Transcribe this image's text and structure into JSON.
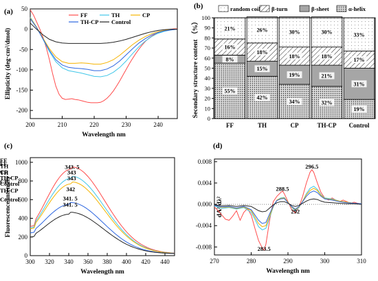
{
  "panels": {
    "a": {
      "label": "(a)"
    },
    "b": {
      "label": "(b)"
    },
    "c": {
      "label": "(c)"
    },
    "d": {
      "label": "(d)"
    }
  },
  "colors": {
    "FF": "#ff4b4b",
    "TH": "#3fc6e8",
    "CP": "#f5b300",
    "TH-CP": "#2a64e0",
    "Control": "#222222"
  },
  "chart_data": [
    {
      "id": "a",
      "type": "line",
      "xlabel": "Wavelength  nm",
      "ylabel": "Ellipticity (deg·cm²/dmol)",
      "xlim": [
        200,
        246
      ],
      "ylim": [
        -220,
        50
      ],
      "xticks": [
        200,
        210,
        220,
        230,
        240
      ],
      "yticks": [
        50,
        0,
        -50,
        -100,
        -150,
        -200
      ],
      "legend_position": "top",
      "series": [
        {
          "name": "FF",
          "color": "#ff4b4b",
          "x": [
            200,
            201,
            202,
            203,
            204,
            205,
            206,
            207,
            208,
            209,
            210,
            211,
            212,
            213,
            214,
            215,
            216,
            217,
            218,
            219,
            220,
            221,
            222,
            223,
            224,
            225,
            226,
            227,
            228,
            229,
            230,
            231,
            232,
            233,
            234,
            235,
            236,
            237,
            238,
            239,
            240,
            241,
            242,
            243,
            244,
            245,
            246
          ],
          "y": [
            48,
            35,
            18,
            0,
            -20,
            -45,
            -75,
            -110,
            -140,
            -160,
            -170,
            -173,
            -172,
            -171,
            -173,
            -174,
            -176,
            -178,
            -180,
            -181,
            -181,
            -181,
            -180,
            -176,
            -170,
            -162,
            -152,
            -140,
            -127,
            -113,
            -99,
            -85,
            -72,
            -60,
            -49,
            -39,
            -30,
            -23,
            -17,
            -12,
            -8,
            -5,
            -3,
            -1,
            0,
            1,
            1
          ]
        },
        {
          "name": "TH",
          "color": "#3fc6e8",
          "x": [
            200,
            202,
            204,
            206,
            208,
            210,
            212,
            214,
            216,
            218,
            220,
            222,
            224,
            226,
            228,
            230,
            232,
            234,
            236,
            238,
            240,
            242,
            244,
            246
          ],
          "y": [
            30,
            5,
            -25,
            -55,
            -80,
            -95,
            -102,
            -105,
            -108,
            -112,
            -116,
            -117,
            -114,
            -106,
            -94,
            -78,
            -60,
            -43,
            -29,
            -18,
            -10,
            -5,
            -2,
            0
          ]
        },
        {
          "name": "CP",
          "color": "#f5b300",
          "x": [
            200,
            202,
            204,
            206,
            208,
            210,
            212,
            214,
            216,
            218,
            220,
            222,
            224,
            226,
            228,
            230,
            232,
            234,
            236,
            238,
            240,
            242,
            244,
            246
          ],
          "y": [
            28,
            5,
            -22,
            -48,
            -68,
            -80,
            -84,
            -84,
            -83,
            -84,
            -86,
            -86,
            -82,
            -75,
            -64,
            -51,
            -38,
            -27,
            -18,
            -11,
            -6,
            -3,
            -1,
            0
          ]
        },
        {
          "name": "TH-CP",
          "color": "#2a64e0",
          "x": [
            200,
            202,
            204,
            206,
            208,
            210,
            212,
            214,
            216,
            218,
            220,
            222,
            224,
            226,
            228,
            230,
            232,
            234,
            236,
            238,
            240,
            242,
            244,
            246
          ],
          "y": [
            26,
            4,
            -24,
            -52,
            -75,
            -88,
            -94,
            -96,
            -97,
            -99,
            -102,
            -102,
            -98,
            -90,
            -78,
            -63,
            -48,
            -34,
            -23,
            -14,
            -8,
            -4,
            -2,
            0
          ]
        },
        {
          "name": "Control",
          "color": "#222222",
          "x": [
            200,
            202,
            204,
            206,
            208,
            210,
            212,
            214,
            216,
            218,
            220,
            222,
            224,
            226,
            228,
            230,
            232,
            234,
            236,
            238,
            240,
            242,
            244,
            246
          ],
          "y": [
            15,
            0,
            -14,
            -25,
            -31,
            -34,
            -35,
            -35,
            -35,
            -35,
            -35,
            -35,
            -34,
            -32,
            -29,
            -25,
            -20,
            -15,
            -10,
            -6,
            -3,
            -1,
            0,
            0
          ]
        }
      ]
    },
    {
      "id": "b",
      "type": "bar",
      "stacked": true,
      "ylabel": "Secondary structure content （%）",
      "ylim": [
        0,
        100
      ],
      "yticks": [
        0,
        10,
        20,
        30,
        40,
        50,
        60,
        70,
        80,
        90,
        100
      ],
      "categories": [
        "FF",
        "TH",
        "CP",
        "TH-CP",
        "Control"
      ],
      "legend_position": "top",
      "series": [
        {
          "name": "α-helix",
          "fill": "dots-dark",
          "values": [
            55,
            42,
            34,
            32,
            19
          ],
          "labels": [
            "55%",
            "42%",
            "34%",
            "32%",
            "19%"
          ]
        },
        {
          "name": "β-sheet",
          "fill": "grey",
          "values": [
            8,
            15,
            19,
            21,
            31
          ],
          "labels": [
            "8%",
            "15%",
            "19%",
            "21%",
            "31%"
          ]
        },
        {
          "name": "β-turn",
          "fill": "hatch",
          "values": [
            16,
            18,
            18,
            18,
            17
          ],
          "labels": [
            "16%",
            "18%",
            "18%",
            "18%",
            "17%"
          ]
        },
        {
          "name": "random coil",
          "fill": "dots-light",
          "values": [
            21,
            26,
            30,
            30,
            33
          ],
          "labels": [
            "21%",
            "26%",
            "30%",
            "30%",
            "33%"
          ]
        }
      ]
    },
    {
      "id": "c",
      "type": "line",
      "xlabel": "Wavelength  nm",
      "ylabel": "Fluorescence intensity",
      "xlim": [
        300,
        450
      ],
      "ylim": [
        0,
        1050
      ],
      "xticks": [
        300,
        320,
        340,
        360,
        380,
        400,
        420,
        440
      ],
      "yticks": [
        0,
        200,
        400,
        600,
        800,
        1000
      ],
      "legend_position": "right",
      "annotations": [
        {
          "text": "343. 5",
          "x": 343.5,
          "y": 930
        },
        {
          "text": "343",
          "x": 343,
          "y": 870
        },
        {
          "text": "343",
          "x": 343,
          "y": 808
        },
        {
          "text": "342",
          "x": 342,
          "y": 690
        },
        {
          "text": "341. 5",
          "x": 341.5,
          "y": 592
        },
        {
          "text": "341. 5",
          "x": 341.5,
          "y": 525
        }
      ],
      "series": [
        {
          "name": "FF",
          "color": "#ff4b4b",
          "peak": 930,
          "center": 343.5,
          "start": 325
        },
        {
          "name": "TH",
          "color": "#3fc6e8",
          "peak": 830,
          "center": 343,
          "start": 310
        },
        {
          "name": "CP",
          "color": "#f5b300",
          "peak": 770,
          "center": 343,
          "start": 300
        },
        {
          "name": "TH-CP",
          "color": "#2a64e0",
          "peak": 550,
          "center": 341.5,
          "start": 255
        },
        {
          "name": "Control",
          "color": "#222222",
          "peak": 445,
          "center": 341.5,
          "start": 210
        }
      ]
    },
    {
      "id": "d",
      "type": "line",
      "xlabel": "Wavelength  nm",
      "ylabel": "dA²/dλ²",
      "xlim": [
        270,
        310
      ],
      "ylim": [
        -0.0095,
        0.0085
      ],
      "xticks": [
        270,
        280,
        290,
        300,
        310
      ],
      "yticks": [
        0.008,
        0.004,
        0.0,
        -0.004,
        -0.008
      ],
      "ytick_labels": [
        "0.008",
        "0.004",
        "0.000",
        "-0.004",
        "-0.008"
      ],
      "legend_position": "top-left",
      "annotations": [
        {
          "text": "296.5",
          "x": 296.5,
          "y": 0.0067
        },
        {
          "text": "288.5",
          "x": 288.5,
          "y": 0.0025
        },
        {
          "text": "292",
          "x": 292,
          "y": -0.0017
        },
        {
          "text": "283.5",
          "x": 283.5,
          "y": -0.0087
        }
      ],
      "series": [
        {
          "name": "FF",
          "color": "#ff4b4b",
          "x": [
            270,
            271,
            272,
            273,
            274,
            275,
            276,
            277,
            278,
            279,
            280,
            281,
            282,
            283,
            283.5,
            284,
            285,
            286,
            287,
            288,
            288.5,
            289,
            290,
            291,
            292,
            293,
            294,
            295,
            296,
            296.5,
            297,
            298,
            299,
            300,
            301,
            302,
            303,
            304,
            305,
            306,
            307,
            308,
            309,
            310
          ],
          "y": [
            -0.0005,
            -0.0012,
            -0.002,
            -0.0028,
            -0.003,
            -0.0022,
            -0.0012,
            -0.003,
            -0.0015,
            -0.0008,
            -0.002,
            -0.0045,
            -0.0068,
            -0.0082,
            -0.0086,
            -0.0075,
            -0.003,
            0.0005,
            0.0015,
            0.0022,
            0.0025,
            0.002,
            0.0005,
            -0.001,
            -0.0016,
            -0.0005,
            0.0015,
            0.004,
            0.006,
            0.0065,
            0.006,
            0.004,
            0.0022,
            0.0012,
            0.0008,
            0.0012,
            0.0008,
            0.0005,
            0.0008,
            0.0005,
            0.0002,
            0.0004,
            0.0002,
            0.0001
          ]
        },
        {
          "name": "TH",
          "color": "#3fc6e8",
          "x": [
            270,
            272,
            274,
            276,
            278,
            280,
            281,
            282,
            283,
            284,
            285,
            286,
            287,
            288,
            289,
            290,
            291,
            292,
            293,
            294,
            295,
            296,
            297,
            298,
            299,
            300,
            302,
            304,
            306,
            308,
            310
          ],
          "y": [
            -0.0003,
            -0.0008,
            -0.0006,
            -0.0009,
            -0.0006,
            -0.0015,
            -0.0028,
            -0.0042,
            -0.0048,
            -0.0045,
            -0.0025,
            -0.0005,
            0.0008,
            0.0012,
            0.0013,
            0.0004,
            -0.0006,
            -0.0012,
            -0.0006,
            0.0006,
            0.002,
            0.003,
            0.0034,
            0.0028,
            0.0018,
            0.0012,
            0.001,
            0.0006,
            0.0004,
            0.0002,
            0.0001
          ]
        },
        {
          "name": "CP",
          "color": "#f5b300",
          "x": [
            270,
            272,
            274,
            276,
            278,
            280,
            281,
            282,
            283,
            284,
            285,
            286,
            287,
            288,
            289,
            290,
            291,
            292,
            293,
            294,
            295,
            296,
            297,
            298,
            299,
            300,
            302,
            304,
            306,
            308,
            310
          ],
          "y": [
            -0.0002,
            -0.0006,
            -0.0005,
            -0.0008,
            -0.0005,
            -0.0012,
            -0.0024,
            -0.0036,
            -0.0042,
            -0.004,
            -0.0022,
            -0.0004,
            0.0008,
            0.0011,
            0.0012,
            0.0004,
            -0.0005,
            -0.001,
            -0.0005,
            0.0006,
            0.0018,
            0.0026,
            0.003,
            0.0026,
            0.0017,
            0.0011,
            0.0009,
            0.0006,
            0.0004,
            0.0002,
            0.0001
          ]
        },
        {
          "name": "TH-CP",
          "color": "#2a64e0",
          "x": [
            270,
            272,
            274,
            276,
            278,
            280,
            281,
            282,
            283,
            284,
            285,
            286,
            287,
            288,
            289,
            290,
            291,
            292,
            293,
            294,
            295,
            296,
            297,
            298,
            299,
            300,
            302,
            304,
            306,
            308,
            310
          ],
          "y": [
            -0.0002,
            -0.0005,
            -0.0004,
            -0.0007,
            -0.0004,
            -0.001,
            -0.002,
            -0.003,
            -0.0036,
            -0.0034,
            -0.0018,
            -0.0003,
            0.0007,
            0.001,
            0.0011,
            0.0003,
            -0.0004,
            -0.0009,
            -0.0004,
            0.0005,
            0.0015,
            0.0022,
            0.0025,
            0.0022,
            0.0015,
            0.001,
            0.0008,
            0.0005,
            0.0003,
            0.0002,
            0.0001
          ]
        },
        {
          "name": "Control",
          "color": "#222222",
          "x": [
            270,
            272,
            274,
            276,
            278,
            280,
            281,
            282,
            283,
            284,
            285,
            286,
            287,
            288,
            289,
            290,
            291,
            292,
            293,
            294,
            295,
            296,
            297,
            298,
            299,
            300,
            302,
            304,
            306,
            308,
            310
          ],
          "y": [
            -0.0001,
            -0.0003,
            -0.0002,
            -0.0004,
            -0.0002,
            -0.0004,
            -0.0008,
            -0.0012,
            -0.0014,
            -0.0013,
            -0.0007,
            -0.0001,
            0.0003,
            0.0005,
            0.0005,
            0.0002,
            -0.0002,
            -0.0004,
            -0.0002,
            0.0002,
            0.0006,
            0.0009,
            0.001,
            0.0009,
            0.0006,
            0.0004,
            0.0003,
            0.0002,
            0.0001,
            0.0001,
            0.0
          ]
        }
      ]
    }
  ]
}
